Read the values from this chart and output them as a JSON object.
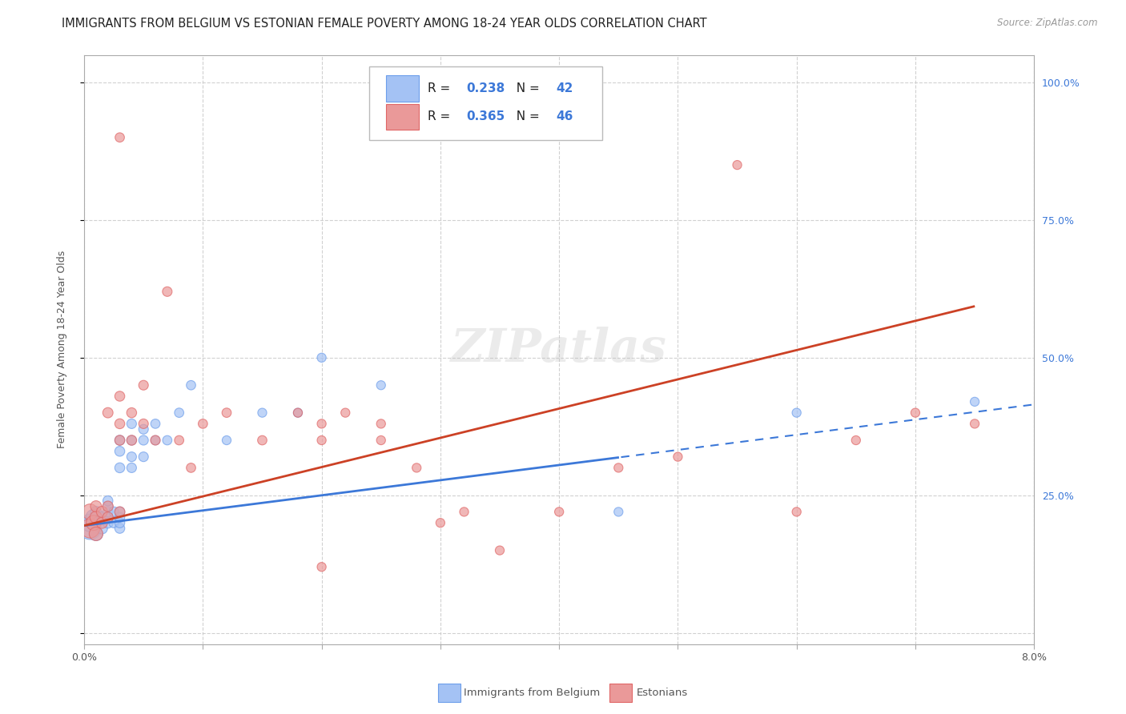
{
  "title": "IMMIGRANTS FROM BELGIUM VS ESTONIAN FEMALE POVERTY AMONG 18-24 YEAR OLDS CORRELATION CHART",
  "source": "Source: ZipAtlas.com",
  "ylabel": "Female Poverty Among 18-24 Year Olds",
  "xlim": [
    0.0,
    0.08
  ],
  "ylim": [
    -0.02,
    1.05
  ],
  "xticks": [
    0.0,
    0.01,
    0.02,
    0.03,
    0.04,
    0.05,
    0.06,
    0.07,
    0.08
  ],
  "xticklabels": [
    "0.0%",
    "",
    "",
    "",
    "",
    "",
    "",
    "",
    "8.0%"
  ],
  "ytick_positions": [
    0.0,
    0.25,
    0.5,
    0.75,
    1.0
  ],
  "yticklabels_right": [
    "",
    "25.0%",
    "50.0%",
    "75.0%",
    "100.0%"
  ],
  "R_blue": 0.238,
  "N_blue": 42,
  "R_pink": 0.365,
  "N_pink": 46,
  "blue_color": "#a4c2f4",
  "pink_color": "#ea9999",
  "blue_edge_color": "#6d9eeb",
  "pink_edge_color": "#e06666",
  "blue_line_color": "#3c78d8",
  "pink_line_color": "#cc4125",
  "watermark": "ZIPatlas",
  "blue_scatter_x": [
    0.0005,
    0.0005,
    0.0008,
    0.001,
    0.001,
    0.001,
    0.0015,
    0.0015,
    0.002,
    0.002,
    0.002,
    0.002,
    0.002,
    0.0025,
    0.0025,
    0.003,
    0.003,
    0.003,
    0.003,
    0.003,
    0.003,
    0.003,
    0.004,
    0.004,
    0.004,
    0.004,
    0.005,
    0.005,
    0.005,
    0.006,
    0.006,
    0.007,
    0.008,
    0.009,
    0.012,
    0.015,
    0.018,
    0.02,
    0.025,
    0.045,
    0.06,
    0.075
  ],
  "blue_scatter_y": [
    0.19,
    0.2,
    0.21,
    0.18,
    0.2,
    0.22,
    0.19,
    0.21,
    0.2,
    0.21,
    0.22,
    0.23,
    0.24,
    0.2,
    0.22,
    0.19,
    0.2,
    0.21,
    0.22,
    0.3,
    0.33,
    0.35,
    0.3,
    0.32,
    0.35,
    0.38,
    0.32,
    0.35,
    0.37,
    0.35,
    0.38,
    0.35,
    0.4,
    0.45,
    0.35,
    0.4,
    0.4,
    0.5,
    0.45,
    0.22,
    0.4,
    0.42
  ],
  "blue_scatter_size": [
    400,
    250,
    200,
    150,
    120,
    100,
    100,
    100,
    90,
    90,
    85,
    80,
    80,
    80,
    80,
    80,
    80,
    80,
    80,
    80,
    80,
    80,
    75,
    75,
    75,
    75,
    75,
    75,
    75,
    70,
    70,
    70,
    70,
    70,
    65,
    65,
    65,
    65,
    65,
    65,
    65,
    65
  ],
  "pink_scatter_x": [
    0.0005,
    0.0005,
    0.0008,
    0.001,
    0.001,
    0.001,
    0.0015,
    0.0015,
    0.002,
    0.002,
    0.002,
    0.003,
    0.003,
    0.003,
    0.003,
    0.004,
    0.004,
    0.005,
    0.005,
    0.006,
    0.007,
    0.008,
    0.009,
    0.01,
    0.012,
    0.015,
    0.018,
    0.02,
    0.022,
    0.025,
    0.025,
    0.028,
    0.03,
    0.032,
    0.035,
    0.04,
    0.045,
    0.05,
    0.055,
    0.06,
    0.065,
    0.07,
    0.075,
    0.003,
    0.02,
    0.02
  ],
  "pink_scatter_y": [
    0.19,
    0.22,
    0.2,
    0.18,
    0.21,
    0.23,
    0.2,
    0.22,
    0.21,
    0.23,
    0.4,
    0.22,
    0.35,
    0.38,
    0.43,
    0.35,
    0.4,
    0.38,
    0.45,
    0.35,
    0.62,
    0.35,
    0.3,
    0.38,
    0.4,
    0.35,
    0.4,
    0.35,
    0.4,
    0.35,
    0.38,
    0.3,
    0.2,
    0.22,
    0.15,
    0.22,
    0.3,
    0.32,
    0.85,
    0.22,
    0.35,
    0.4,
    0.38,
    0.9,
    0.12,
    0.38
  ],
  "pink_scatter_size": [
    300,
    200,
    180,
    150,
    120,
    100,
    100,
    100,
    90,
    90,
    85,
    85,
    80,
    80,
    80,
    80,
    80,
    75,
    75,
    75,
    75,
    70,
    70,
    70,
    70,
    70,
    65,
    65,
    65,
    65,
    65,
    65,
    65,
    65,
    65,
    65,
    65,
    65,
    65,
    65,
    65,
    65,
    65,
    70,
    65,
    65
  ],
  "background_color": "#ffffff",
  "grid_color": "#cccccc",
  "title_fontsize": 10.5,
  "axis_label_fontsize": 9,
  "tick_fontsize": 9,
  "blue_line_x_solid_end": 0.045,
  "pink_line_x_solid_end": 0.075,
  "blue_line_y0": 0.195,
  "blue_line_y1": 0.415,
  "pink_line_y0": 0.195,
  "pink_line_y1": 0.62,
  "blue_line_x0": 0.0,
  "blue_line_x1": 0.08,
  "pink_line_x0": 0.0,
  "pink_line_x1": 0.08
}
